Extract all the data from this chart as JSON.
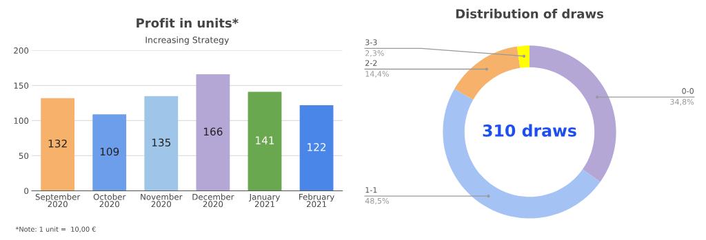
{
  "chart_data": [
    {
      "type": "bar",
      "title": "Profit in units*",
      "subtitle": "Increasing Strategy",
      "categories": [
        "September\n2020",
        "October\n2020",
        "November\n2020",
        "December\n2020",
        "January\n2021",
        "February\n2021"
      ],
      "values": [
        132,
        109,
        135,
        166,
        141,
        122
      ],
      "colors": [
        "#f6b26b",
        "#6d9eeb",
        "#9fc5e8",
        "#b4a7d6",
        "#6aa84f",
        "#4a86e8"
      ],
      "ylim": [
        0,
        200
      ],
      "yticks": [
        0,
        50,
        100,
        150,
        200
      ],
      "grid": "y",
      "data_labels": true,
      "annotations": [
        "*Note: 1 unit =  10,00 €"
      ]
    },
    {
      "type": "donut",
      "title": "Distribution of draws",
      "categories": [
        "0-0",
        "1-1",
        "2-2",
        "3-3"
      ],
      "values": [
        34.8,
        48.5,
        14.4,
        2.3
      ],
      "colors": [
        "#b4a7d6",
        "#a4c2f4",
        "#f6b26b",
        "#ffff00"
      ],
      "value_labels": [
        "34,8%",
        "48,5%",
        "14,4%",
        "2,3%"
      ],
      "annotations": [
        "310 draws"
      ]
    }
  ]
}
